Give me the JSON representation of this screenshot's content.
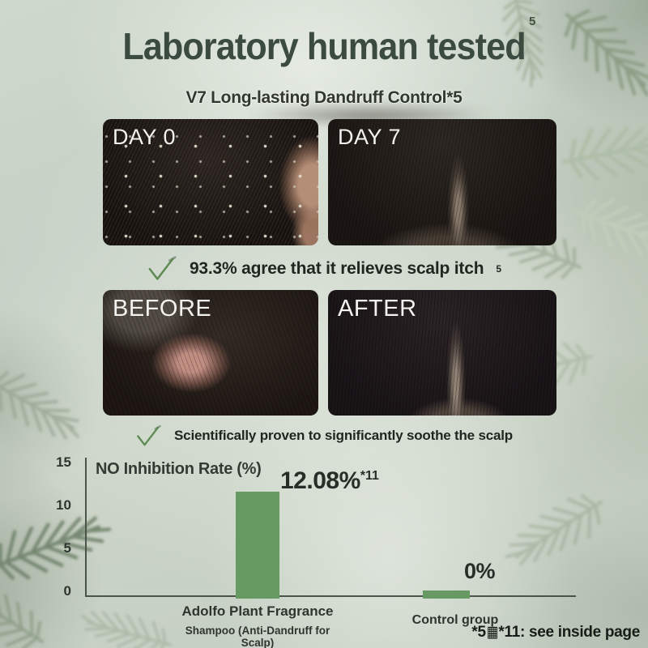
{
  "colors": {
    "title_green": "#3b4b3f",
    "text_dark": "#1e2620",
    "check_green": "#5d8a52",
    "axis_color": "#49544b",
    "label_white": "#f3f2ee"
  },
  "header": {
    "corner_superscript": "5",
    "title": "Laboratory human tested",
    "subtitle": "V7 Long-lasting Dandruff Control*5"
  },
  "day_comparison": {
    "left_label": "DAY 0",
    "right_label": "DAY 7"
  },
  "claim_itch": {
    "text": "93.3% agree that it relieves scalp itch",
    "superscript": "5"
  },
  "before_after": {
    "left_label": "BEFORE",
    "right_label": "AFTER"
  },
  "claim_soothe": {
    "text": "Scientifically proven to significantly soothe the scalp"
  },
  "chart_data": {
    "type": "bar",
    "title": "NO Inhibition Rate (%)",
    "categories": [
      "Adolfo Plant Fragrance Shampoo (Anti-Dandruff for Scalp)",
      "Control group"
    ],
    "category_lines": [
      {
        "line1": "Adolfo Plant Fragrance",
        "line2": "Shampoo (Anti-Dandruff for Scalp)"
      },
      {
        "line1": "Control group",
        "line2": ""
      }
    ],
    "values": [
      12.08,
      0
    ],
    "value_labels": [
      {
        "main": "12.08%",
        "sup": "*11"
      },
      {
        "main": "0%",
        "sup": ""
      }
    ],
    "yticks": [
      "15",
      "10",
      "5",
      "0"
    ],
    "ylim": [
      0,
      15
    ],
    "ylabel": "NO Inhibition Rate (%)",
    "xlabel": "",
    "grid": false,
    "legend": false,
    "bar_color": "#679a62"
  },
  "footnote": {
    "part1": "*5",
    "missing_glyph": "▦",
    "part2": "*11: see inside page"
  }
}
